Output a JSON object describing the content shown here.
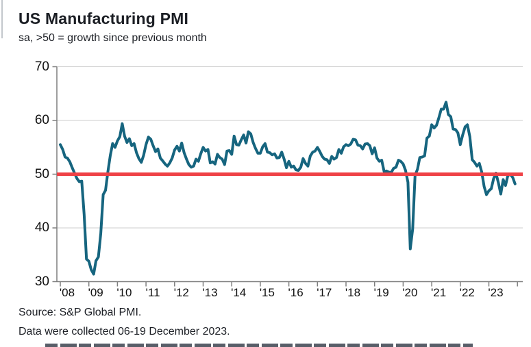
{
  "header": {
    "title": "US Manufacturing PMI",
    "subtitle": "sa, >50 = growth since previous month"
  },
  "footer": {
    "source": "Source: S&P Global PMI.",
    "collection_note": "Data were collected 06-19 December 2023."
  },
  "colors": {
    "series_line": "#16657f",
    "reference_line": "#ef4146",
    "grid": "#cdcdcd",
    "axis": "#7f7f7f",
    "text": "#1b1e24"
  },
  "chart_data": {
    "type": "line",
    "title": "US Manufacturing PMI",
    "subtitle": "sa, >50 = growth since previous month",
    "frequency": "monthly",
    "x_start": "2008-01",
    "x_end": "2023-12",
    "x_tick_labels": [
      "'08",
      "'09",
      "'10",
      "'11",
      "'12",
      "'13",
      "'14",
      "'15",
      "'16",
      "'17",
      "'18",
      "'19",
      "'20",
      "'21",
      "'22",
      "'23"
    ],
    "y_ticks": [
      30,
      40,
      50,
      60,
      70
    ],
    "ylim": [
      30,
      70
    ],
    "grid": "horizontal",
    "legend_position": "none",
    "reference_line_y": 50,
    "reference_line_meaning": ">50 = growth since previous month",
    "series": [
      {
        "name": "US Manufacturing PMI (sa)",
        "values_by_year": {
          "2008": [
            55.5,
            54.6,
            53.2,
            53.0,
            52.3,
            51.2,
            50.2,
            49.2,
            48.6,
            48.7,
            42.5,
            34.2
          ],
          "2009": [
            33.8,
            32.2,
            31.4,
            33.9,
            34.6,
            39.0,
            46.2,
            47.0,
            50.5,
            53.5,
            55.7,
            55.0
          ],
          "2010": [
            56.2,
            57.0,
            59.4,
            57.1,
            55.9,
            56.6,
            55.3,
            55.7,
            54.0,
            52.9,
            52.2,
            53.5
          ],
          "2011": [
            55.5,
            56.9,
            56.5,
            55.3,
            54.2,
            54.7,
            53.0,
            52.5,
            51.9,
            51.5,
            52.1,
            53.0
          ],
          "2012": [
            54.5,
            55.2,
            54.3,
            55.8,
            54.0,
            52.8,
            51.8,
            51.3,
            51.5,
            52.8,
            52.4,
            53.8
          ],
          "2013": [
            55.0,
            54.3,
            54.6,
            52.1,
            52.3,
            51.9,
            53.7,
            53.1,
            52.8,
            51.8,
            54.3,
            54.4
          ],
          "2014": [
            53.7,
            57.1,
            55.5,
            55.4,
            56.4,
            57.3,
            55.8,
            57.9,
            57.5,
            55.9,
            54.8,
            53.9
          ],
          "2015": [
            53.9,
            55.1,
            55.7,
            54.1,
            54.0,
            53.6,
            53.8,
            53.0,
            53.1,
            54.1,
            52.8,
            51.2
          ],
          "2016": [
            52.4,
            51.3,
            51.5,
            50.8,
            50.7,
            51.3,
            52.9,
            52.0,
            51.5,
            53.4,
            54.1,
            54.3
          ],
          "2017": [
            55.0,
            54.2,
            53.3,
            52.8,
            52.7,
            52.0,
            53.3,
            52.8,
            53.1,
            54.6,
            53.9,
            55.1
          ],
          "2018": [
            55.5,
            55.3,
            55.6,
            56.5,
            56.4,
            55.4,
            55.3,
            54.7,
            55.6,
            55.7,
            55.3,
            53.8
          ],
          "2019": [
            54.9,
            53.0,
            52.4,
            52.6,
            50.5,
            50.6,
            50.4,
            50.3,
            51.1,
            51.3,
            52.6,
            52.4
          ],
          "2020": [
            51.9,
            50.7,
            48.5,
            36.1,
            39.8,
            49.8,
            50.9,
            53.1,
            53.2,
            53.4,
            56.7,
            57.1
          ],
          "2021": [
            59.2,
            58.6,
            59.1,
            60.5,
            62.1,
            62.1,
            63.4,
            61.1,
            60.7,
            58.4,
            58.3,
            57.7
          ],
          "2022": [
            55.5,
            57.3,
            58.8,
            59.2,
            57.0,
            52.7,
            52.2,
            51.5,
            52.0,
            50.4,
            47.7,
            46.2
          ],
          "2023": [
            46.9,
            47.3,
            49.2,
            50.2,
            48.4,
            46.3,
            49.0,
            47.9,
            49.8,
            50.0,
            49.4,
            48.2
          ]
        }
      }
    ]
  }
}
